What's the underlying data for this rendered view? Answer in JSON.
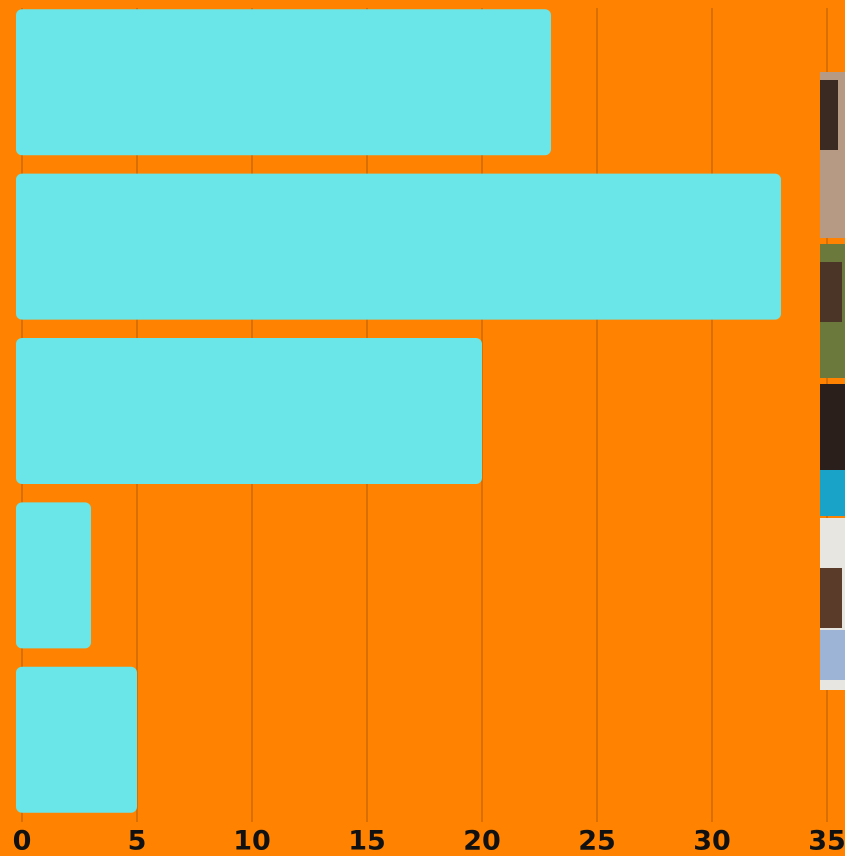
{
  "chart_data": {
    "type": "barh",
    "categories": [
      null,
      null,
      null,
      null,
      null
    ],
    "values": [
      23,
      33,
      20,
      3,
      5
    ],
    "color": "#6ae6e8",
    "xlim": [
      0,
      35
    ],
    "xticks": [
      0,
      5,
      10,
      15,
      20,
      25,
      30,
      35
    ],
    "grid": true
  }
}
